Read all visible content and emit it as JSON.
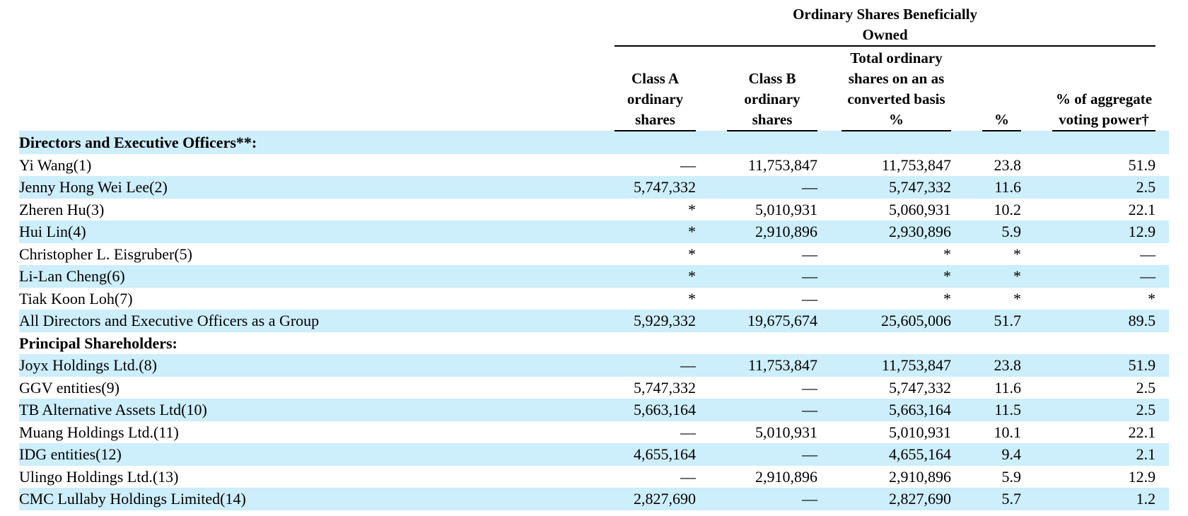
{
  "table": {
    "group_header": "Ordinary Shares Beneficially Owned",
    "columns": [
      "Class A ordinary shares",
      "Class B ordinary shares",
      "Total ordinary shares on an as converted basis %",
      "%",
      "% of aggregate voting power†"
    ],
    "rows": [
      {
        "label": "Directors and Executive Officers**:",
        "section": true
      },
      {
        "label": "Yi Wang(1)",
        "cells": [
          "—",
          "11,753,847",
          "11,753,847",
          "23.8",
          "51.9"
        ]
      },
      {
        "label": "Jenny Hong Wei Lee(2)",
        "cells": [
          "5,747,332",
          "—",
          "5,747,332",
          "11.6",
          "2.5"
        ]
      },
      {
        "label": "Zheren Hu(3)",
        "cells": [
          "*",
          "5,010,931",
          "5,060,931",
          "10.2",
          "22.1"
        ]
      },
      {
        "label": "Hui Lin(4)",
        "cells": [
          "*",
          "2,910,896",
          "2,930,896",
          "5.9",
          "12.9"
        ]
      },
      {
        "label": "Christopher L. Eisgruber(5)",
        "cells": [
          "*",
          "—",
          "*",
          "*",
          "—"
        ]
      },
      {
        "label": "Li-Lan Cheng(6)",
        "cells": [
          "*",
          "—",
          "*",
          "*",
          "—"
        ]
      },
      {
        "label": "Tiak Koon Loh(7)",
        "cells": [
          "*",
          "—",
          "*",
          "*",
          "*"
        ]
      },
      {
        "label": "All Directors and Executive Officers as a Group",
        "cells": [
          "5,929,332",
          "19,675,674",
          "25,605,006",
          "51.7",
          "89.5"
        ]
      },
      {
        "label": "Principal Shareholders:",
        "section": true
      },
      {
        "label": "Joyx Holdings Ltd.(8)",
        "cells": [
          "—",
          "11,753,847",
          "11,753,847",
          "23.8",
          "51.9"
        ]
      },
      {
        "label": "GGV entities(9)",
        "cells": [
          "5,747,332",
          "—",
          "5,747,332",
          "11.6",
          "2.5"
        ]
      },
      {
        "label": "TB Alternative Assets Ltd(10)",
        "cells": [
          "5,663,164",
          "—",
          "5,663,164",
          "11.5",
          "2.5"
        ]
      },
      {
        "label": "Muang Holdings Ltd.(11)",
        "cells": [
          "—",
          "5,010,931",
          "5,010,931",
          "10.1",
          "22.1"
        ]
      },
      {
        "label": "IDG entities(12)",
        "cells": [
          "4,655,164",
          "—",
          "4,655,164",
          "9.4",
          "2.1"
        ]
      },
      {
        "label": "Ulingo Holdings Ltd.(13)",
        "cells": [
          "—",
          "2,910,896",
          "2,910,896",
          "5.9",
          "12.9"
        ]
      },
      {
        "label": "CMC Lullaby Holdings Limited(14)",
        "cells": [
          "2,827,690",
          "—",
          "2,827,690",
          "5.7",
          "1.2"
        ]
      }
    ]
  }
}
